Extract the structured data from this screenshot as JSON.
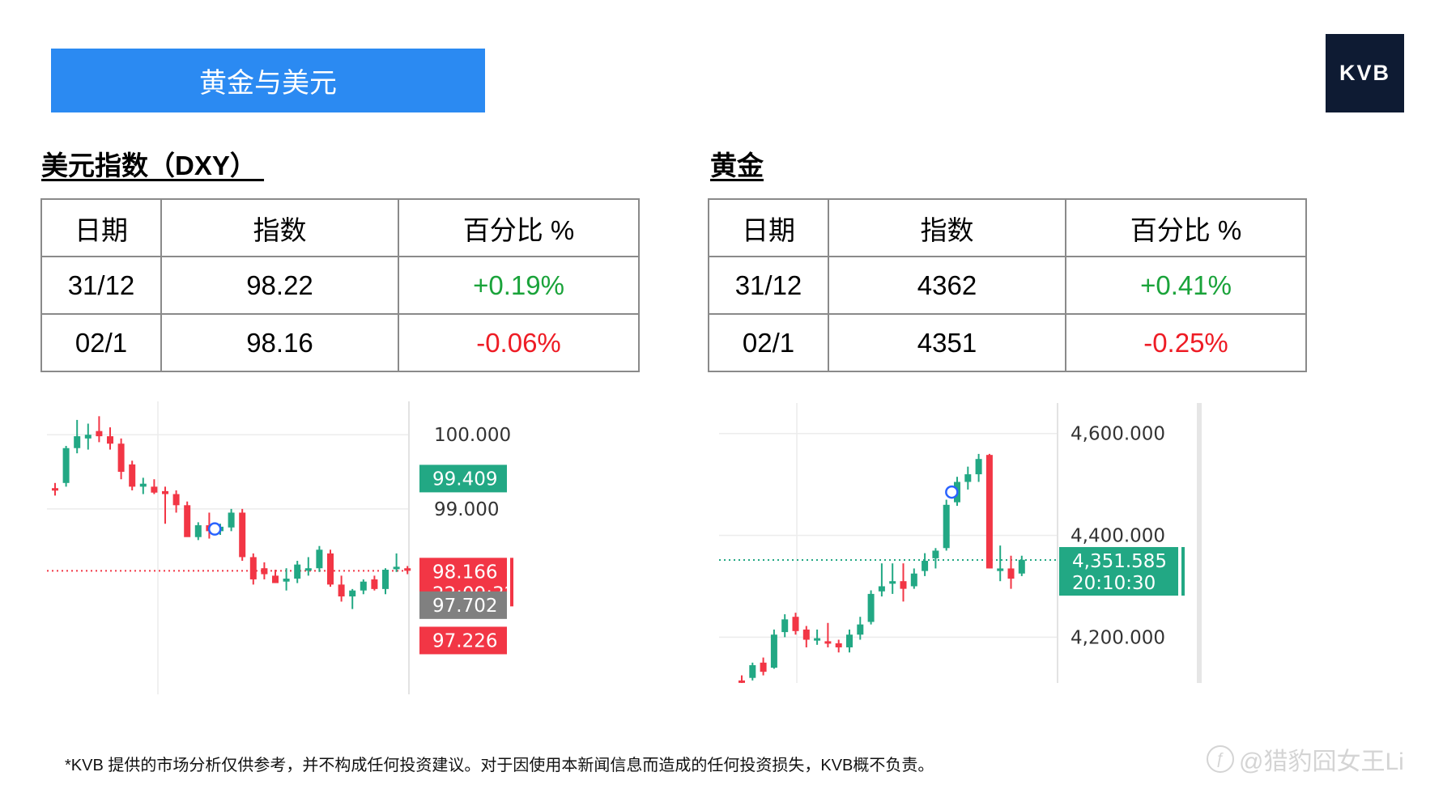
{
  "banner": {
    "title": "黄金与美元"
  },
  "logo": {
    "text": "KVB"
  },
  "dxy": {
    "heading": "美元指数（DXY） ",
    "columns": [
      "日期",
      "指数",
      "百分比 %"
    ],
    "rows": [
      {
        "date": "31/12",
        "value": "98.22",
        "change": "+0.19%"
      },
      {
        "date": "02/1",
        "value": "98.16",
        "change": "-0.06%"
      }
    ]
  },
  "gold": {
    "heading": "黄金",
    "columns": [
      "日期",
      "指数",
      "百分比 %"
    ],
    "rows": [
      {
        "date": "31/12",
        "value": "4362",
        "change": "+0.41%"
      },
      {
        "date": "02/1",
        "value": "4351",
        "change": "-0.25%"
      }
    ]
  },
  "colors": {
    "up": "#22a884",
    "down": "#f23645",
    "banner": "#2b8af2",
    "logo_bg": "#0e1b33",
    "positive_text": "#1aa33a",
    "negative_text": "#ee1c25"
  },
  "chart_data": [
    {
      "type": "candlestick",
      "title": "",
      "ylim": [
        96.5,
        100.45
      ],
      "y_ticks": [
        "100.000",
        "99.000"
      ],
      "y_tick_values": [
        100.0,
        99.0
      ],
      "price_tags": [
        {
          "label": "99.409",
          "value": 99.409,
          "color": "#22a884"
        },
        {
          "label": "98.166",
          "sublabel": "22:09:32",
          "value": 98.166,
          "color": "#f23645"
        },
        {
          "label": "97.702",
          "value": 97.702,
          "color": "#808080"
        },
        {
          "label": "97.226",
          "value": 97.226,
          "color": "#f23645"
        }
      ],
      "last_price": 98.166,
      "marker_index": 15,
      "candles": [
        [
          99.28,
          99.35,
          99.18,
          99.25
        ],
        [
          99.35,
          99.85,
          99.3,
          99.82
        ],
        [
          99.82,
          100.2,
          99.75,
          99.98
        ],
        [
          99.95,
          100.15,
          99.8,
          100.0
        ],
        [
          100.05,
          100.25,
          99.9,
          99.98
        ],
        [
          99.98,
          100.1,
          99.8,
          99.88
        ],
        [
          99.88,
          99.95,
          99.4,
          99.5
        ],
        [
          99.6,
          99.65,
          99.25,
          99.3
        ],
        [
          99.3,
          99.42,
          99.2,
          99.34
        ],
        [
          99.3,
          99.4,
          99.2,
          99.22
        ],
        [
          99.24,
          99.3,
          98.8,
          99.2
        ],
        [
          99.2,
          99.25,
          98.95,
          99.05
        ],
        [
          99.05,
          99.1,
          98.65,
          98.62
        ],
        [
          98.62,
          98.82,
          98.58,
          98.78
        ],
        [
          98.78,
          98.95,
          98.6,
          98.7
        ],
        [
          98.7,
          98.8,
          98.65,
          98.76
        ],
        [
          98.75,
          99.0,
          98.7,
          98.95
        ],
        [
          98.95,
          99.0,
          98.3,
          98.35
        ],
        [
          98.35,
          98.4,
          97.98,
          98.05
        ],
        [
          98.2,
          98.28,
          98.05,
          98.12
        ],
        [
          98.1,
          98.18,
          98.0,
          98.0
        ],
        [
          98.02,
          98.2,
          97.9,
          98.06
        ],
        [
          98.06,
          98.3,
          98.0,
          98.25
        ],
        [
          98.2,
          98.35,
          98.1,
          98.2
        ],
        [
          98.2,
          98.5,
          98.15,
          98.45
        ],
        [
          98.4,
          98.45,
          97.95,
          97.98
        ],
        [
          97.98,
          98.1,
          97.75,
          97.82
        ],
        [
          97.82,
          97.92,
          97.65,
          97.9
        ],
        [
          97.9,
          98.05,
          97.85,
          98.02
        ],
        [
          98.05,
          98.1,
          97.9,
          97.92
        ],
        [
          97.92,
          98.2,
          97.85,
          98.18
        ],
        [
          98.2,
          98.4,
          98.15,
          98.22
        ],
        [
          98.2,
          98.23,
          98.12,
          98.166
        ]
      ]
    },
    {
      "type": "candlestick",
      "title": "",
      "ylim": [
        4110,
        4660
      ],
      "y_ticks": [
        "4,600.000",
        "4,400.000",
        "4,200.000"
      ],
      "y_tick_values": [
        4600,
        4400,
        4200
      ],
      "price_tags": [
        {
          "label": "4,351.585",
          "sublabel": "20:10:30",
          "value": 4351.585,
          "color": "#22a884"
        }
      ],
      "last_price": 4351.585,
      "marker_index": 20,
      "candles": [
        [
          4115,
          4125,
          4105,
          4112
        ],
        [
          4120,
          4150,
          4115,
          4145
        ],
        [
          4150,
          4160,
          4125,
          4132
        ],
        [
          4140,
          4215,
          4138,
          4205
        ],
        [
          4210,
          4245,
          4200,
          4235
        ],
        [
          4240,
          4248,
          4205,
          4212
        ],
        [
          4215,
          4222,
          4180,
          4195
        ],
        [
          4195,
          4215,
          4185,
          4198
        ],
        [
          4192,
          4228,
          4180,
          4190
        ],
        [
          4188,
          4195,
          4170,
          4180
        ],
        [
          4180,
          4215,
          4170,
          4205
        ],
        [
          4205,
          4240,
          4195,
          4225
        ],
        [
          4230,
          4292,
          4225,
          4285
        ],
        [
          4290,
          4345,
          4280,
          4300
        ],
        [
          4305,
          4345,
          4285,
          4310
        ],
        [
          4310,
          4345,
          4270,
          4295
        ],
        [
          4300,
          4335,
          4295,
          4325
        ],
        [
          4330,
          4365,
          4320,
          4350
        ],
        [
          4355,
          4375,
          4335,
          4370
        ],
        [
          4375,
          4470,
          4370,
          4460
        ],
        [
          4465,
          4515,
          4458,
          4505
        ],
        [
          4505,
          4535,
          4490,
          4520
        ],
        [
          4520,
          4560,
          4505,
          4550
        ],
        [
          4558,
          4560,
          4335,
          4335
        ],
        [
          4330,
          4380,
          4310,
          4335
        ],
        [
          4335,
          4360,
          4295,
          4315
        ],
        [
          4325,
          4360,
          4320,
          4352
        ]
      ]
    }
  ],
  "footnote": "*KVB 提供的市场分析仅供参考，并不构成任何投资建议。对于因使用本新闻信息而造成的任何投资损失，KVB概不负责。",
  "watermark": "@猎豹囧女王Li"
}
